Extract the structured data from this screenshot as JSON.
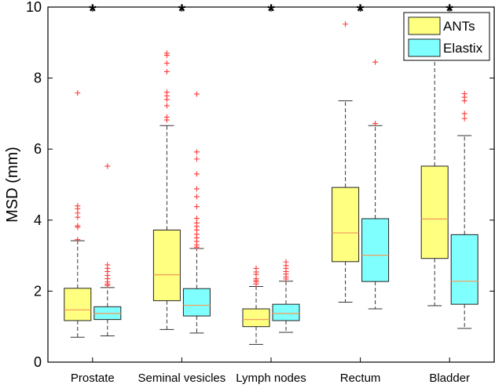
{
  "chart_data": {
    "type": "box",
    "title": "",
    "xlabel": "",
    "ylabel": "MSD (mm)",
    "ylim": [
      0,
      10
    ],
    "yticks": [
      0,
      2,
      4,
      6,
      8,
      10
    ],
    "grid": false,
    "legend_position": "top-right",
    "categories": [
      "Prostate",
      "Seminal vesicles",
      "Lymph nodes",
      "Rectum",
      "Bladder"
    ],
    "significance_marker": "*",
    "series": [
      {
        "name": "ANTs",
        "color": "#ffff80",
        "boxes": [
          {
            "q1": 1.17,
            "median": 1.47,
            "q3": 2.08,
            "whisker_low": 0.7,
            "whisker_high": 3.42,
            "outliers": [
              7.58,
              4.4,
              4.32,
              4.2,
              4.08,
              3.84,
              3.8,
              3.45
            ]
          },
          {
            "q1": 1.73,
            "median": 2.46,
            "q3": 3.72,
            "whisker_low": 0.92,
            "whisker_high": 6.66,
            "outliers": [
              8.7,
              8.64,
              8.42,
              8.18,
              7.6,
              7.5,
              7.4,
              7.22,
              6.9,
              6.82
            ]
          },
          {
            "q1": 1.0,
            "median": 1.2,
            "q3": 1.5,
            "whisker_low": 0.5,
            "whisker_high": 2.13,
            "outliers": [
              2.64,
              2.54,
              2.47,
              2.35,
              2.3,
              2.26,
              2.2
            ]
          },
          {
            "q1": 2.83,
            "median": 3.64,
            "q3": 4.92,
            "whisker_low": 1.69,
            "whisker_high": 7.36,
            "outliers": [
              9.52
            ]
          },
          {
            "q1": 2.92,
            "median": 4.03,
            "q3": 5.52,
            "whisker_low": 1.59,
            "whisker_high": 8.92,
            "outliers": []
          }
        ]
      },
      {
        "name": "Elastix",
        "color": "#80ffff",
        "boxes": [
          {
            "q1": 1.2,
            "median": 1.37,
            "q3": 1.56,
            "whisker_low": 0.74,
            "whisker_high": 2.1,
            "outliers": [
              5.52,
              2.74,
              2.64,
              2.55,
              2.44,
              2.35,
              2.26,
              2.2,
              2.16
            ]
          },
          {
            "q1": 1.3,
            "median": 1.6,
            "q3": 2.07,
            "whisker_low": 0.82,
            "whisker_high": 3.2,
            "outliers": [
              7.55,
              5.92,
              5.72,
              5.3,
              4.88,
              4.66,
              4.38,
              4.05,
              3.92,
              3.82,
              3.72,
              3.6,
              3.5,
              3.4,
              3.3,
              3.24
            ]
          },
          {
            "q1": 1.17,
            "median": 1.37,
            "q3": 1.63,
            "whisker_low": 0.84,
            "whisker_high": 2.28,
            "outliers": [
              2.82,
              2.72,
              2.64,
              2.55,
              2.48,
              2.4,
              2.34
            ]
          },
          {
            "q1": 2.27,
            "median": 3.01,
            "q3": 4.04,
            "whisker_low": 1.5,
            "whisker_high": 6.66,
            "outliers": [
              8.45,
              6.72
            ]
          },
          {
            "q1": 1.63,
            "median": 2.28,
            "q3": 3.59,
            "whisker_low": 0.95,
            "whisker_high": 6.38,
            "outliers": [
              7.56,
              7.46,
              7.36,
              7.0,
              6.86
            ]
          }
        ]
      }
    ],
    "colors": {
      "box_edge": "#222222",
      "whisker": "#333333",
      "median": "#f0a060",
      "outlier": "#ff3b3b",
      "axis": "#000000"
    }
  }
}
